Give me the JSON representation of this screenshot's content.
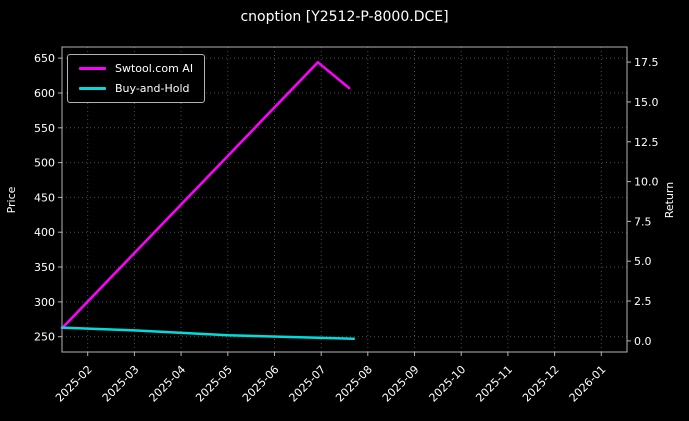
{
  "chart_data": {
    "type": "line",
    "title": "cnoption [Y2512-P-8000.DCE]",
    "ylabel_left": "Price",
    "ylabel_right": "Return",
    "x_tick_labels": [
      "2025-02",
      "2025-03",
      "2025-04",
      "2025-05",
      "2025-06",
      "2025-07",
      "2025-08",
      "2025-09",
      "2025-10",
      "2025-11",
      "2025-12",
      "2026-01"
    ],
    "x_tick_positions": [
      1,
      2,
      3,
      4,
      5,
      6,
      7,
      8,
      9,
      10,
      11,
      12
    ],
    "xlim": [
      0.45,
      12.55
    ],
    "ylim_left": [
      228,
      666
    ],
    "yticks_left": [
      250,
      300,
      350,
      400,
      450,
      500,
      550,
      600,
      650
    ],
    "yticks_left_labels": [
      "250",
      "300",
      "350",
      "400",
      "450",
      "500",
      "550",
      "600",
      "650"
    ],
    "ylim_right": [
      -0.7,
      18.45
    ],
    "yticks_right": [
      0.0,
      2.5,
      5.0,
      7.5,
      10.0,
      12.5,
      15.0,
      17.5
    ],
    "yticks_right_labels": [
      "0.0",
      "2.5",
      "5.0",
      "7.5",
      "10.0",
      "12.5",
      "15.0",
      "17.5"
    ],
    "grid": true,
    "legend_position": "upper left",
    "series": [
      {
        "name": "Swtool.com AI",
        "color": "#ff00ff",
        "axis": "left",
        "x": [
          0.45,
          5.93,
          6.6
        ],
        "y": [
          262,
          644,
          607
        ]
      },
      {
        "name": "Buy-and-Hold",
        "color": "#00dcdc",
        "axis": "left",
        "x": [
          0.45,
          2.0,
          4.0,
          6.7
        ],
        "y": [
          263,
          259,
          252,
          247
        ]
      }
    ],
    "colors": {
      "background": "#000000",
      "text": "#ffffff",
      "grid": "#4d4d4d",
      "spine": "#b3b3b3"
    }
  }
}
